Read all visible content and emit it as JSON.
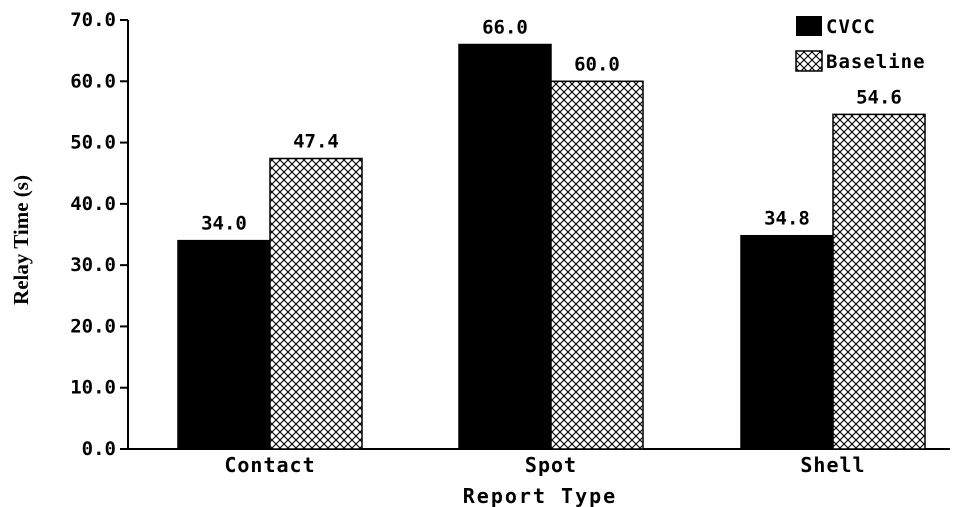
{
  "chart_data": {
    "type": "bar",
    "title": "",
    "xlabel": "Report Type",
    "ylabel": "Relay Time (s)",
    "categories": [
      "Contact",
      "Spot",
      "Shell"
    ],
    "series": [
      {
        "name": "CVCC",
        "values": [
          34.0,
          66.0,
          34.8
        ],
        "labels": [
          "34.0",
          "66.0",
          "34.8"
        ],
        "fill": "solid",
        "color": "#000000"
      },
      {
        "name": "Baseline",
        "values": [
          47.4,
          60.0,
          54.6
        ],
        "labels": [
          "47.4",
          "60.0",
          "54.6"
        ],
        "fill": "crosshatch",
        "color": "#000000"
      }
    ],
    "ylim": [
      0,
      70
    ],
    "yticks": [
      "0.0",
      "10.0",
      "20.0",
      "30.0",
      "40.0",
      "50.0",
      "60.0",
      "70.0"
    ],
    "grid": false,
    "legend": "top-right"
  }
}
